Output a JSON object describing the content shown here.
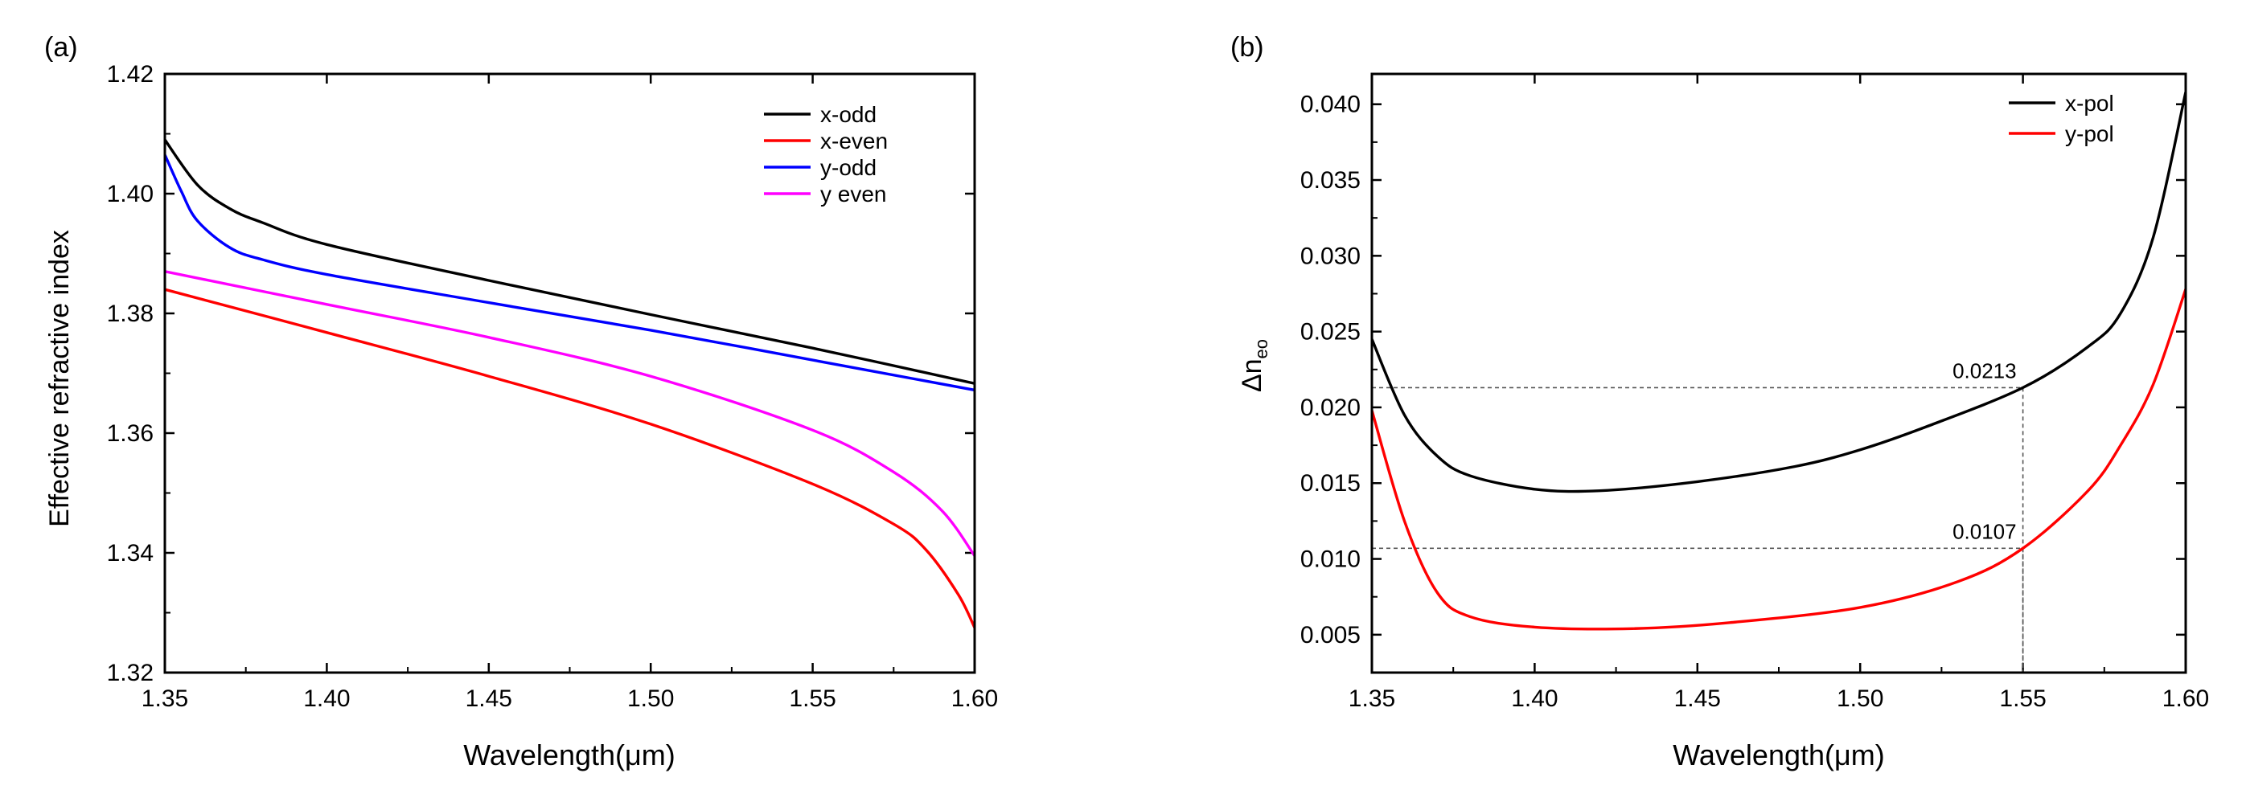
{
  "chart_data": [
    {
      "panel": "(a)",
      "type": "line",
      "xlabel": "Wavelength(μm)",
      "ylabel": "Effective refractive index",
      "xlim": [
        1.35,
        1.6
      ],
      "ylim": [
        1.32,
        1.42
      ],
      "xticks": [
        1.35,
        1.4,
        1.45,
        1.5,
        1.55,
        1.6
      ],
      "xtick_labels": [
        "1.35",
        "1.40",
        "1.45",
        "1.50",
        "1.55",
        "1.60"
      ],
      "yticks": [
        1.32,
        1.34,
        1.36,
        1.38,
        1.4,
        1.42
      ],
      "ytick_labels": [
        "1.32",
        "1.34",
        "1.36",
        "1.38",
        "1.40",
        "1.42"
      ],
      "legend_position": "top-right",
      "grid": false,
      "series": [
        {
          "name": "x-odd",
          "color": "#000000",
          "x": [
            1.35,
            1.36,
            1.37,
            1.38,
            1.4,
            1.45,
            1.5,
            1.55,
            1.6
          ],
          "y": [
            1.409,
            1.4015,
            1.3975,
            1.3952,
            1.3915,
            1.3855,
            1.3798,
            1.3742,
            1.3683
          ]
        },
        {
          "name": "x-even",
          "color": "#ff0000",
          "x": [
            1.35,
            1.4,
            1.45,
            1.5,
            1.55,
            1.575,
            1.585,
            1.595,
            1.6
          ],
          "y": [
            1.384,
            1.3768,
            1.3695,
            1.3615,
            1.3515,
            1.3448,
            1.3405,
            1.333,
            1.3275
          ]
        },
        {
          "name": "y-odd",
          "color": "#0000ff",
          "x": [
            1.35,
            1.355,
            1.36,
            1.37,
            1.38,
            1.4,
            1.45,
            1.5,
            1.55,
            1.6
          ],
          "y": [
            1.4065,
            1.4005,
            1.3955,
            1.391,
            1.389,
            1.3865,
            1.3818,
            1.3772,
            1.3722,
            1.3672
          ]
        },
        {
          "name": "y even",
          "color": "#ff00ff",
          "x": [
            1.35,
            1.4,
            1.45,
            1.5,
            1.55,
            1.575,
            1.59,
            1.6
          ],
          "y": [
            1.387,
            1.3815,
            1.376,
            1.3695,
            1.3605,
            1.3535,
            1.347,
            1.3395
          ]
        }
      ]
    },
    {
      "panel": "(b)",
      "type": "line",
      "xlabel": "Wavelength(μm)",
      "ylabel_main": "Δn",
      "ylabel_sub": "eo",
      "xlim": [
        1.35,
        1.6
      ],
      "ylim": [
        0.0025,
        0.042
      ],
      "xticks": [
        1.35,
        1.4,
        1.45,
        1.5,
        1.55,
        1.6
      ],
      "xtick_labels": [
        "1.35",
        "1.40",
        "1.45",
        "1.50",
        "1.55",
        "1.60"
      ],
      "yticks": [
        0.005,
        0.01,
        0.015,
        0.02,
        0.025,
        0.03,
        0.035,
        0.04
      ],
      "ytick_labels": [
        "0.005",
        "0.010",
        "0.015",
        "0.020",
        "0.025",
        "0.030",
        "0.035",
        "0.040"
      ],
      "legend_position": "top-right",
      "grid": false,
      "series": [
        {
          "name": "x-pol",
          "color": "#000000",
          "x": [
            1.35,
            1.36,
            1.37,
            1.38,
            1.4,
            1.42,
            1.45,
            1.48,
            1.5,
            1.52,
            1.55,
            1.57,
            1.58,
            1.59,
            1.6
          ],
          "y": [
            0.0245,
            0.0195,
            0.0168,
            0.0155,
            0.0146,
            0.0145,
            0.0151,
            0.0161,
            0.0172,
            0.0187,
            0.0213,
            0.024,
            0.0262,
            0.0312,
            0.0408
          ]
        },
        {
          "name": "y-pol",
          "color": "#ff0000",
          "x": [
            1.35,
            1.36,
            1.37,
            1.38,
            1.4,
            1.43,
            1.46,
            1.5,
            1.53,
            1.55,
            1.57,
            1.58,
            1.59,
            1.6
          ],
          "y": [
            0.0198,
            0.0125,
            0.0078,
            0.0062,
            0.0055,
            0.0054,
            0.0058,
            0.0068,
            0.0085,
            0.0107,
            0.0145,
            0.0175,
            0.0215,
            0.0278
          ]
        }
      ],
      "annotations": [
        {
          "text": "0.0213",
          "x": 1.55,
          "y": 0.0213
        },
        {
          "text": "0.0107",
          "x": 1.55,
          "y": 0.0107
        }
      ]
    }
  ]
}
